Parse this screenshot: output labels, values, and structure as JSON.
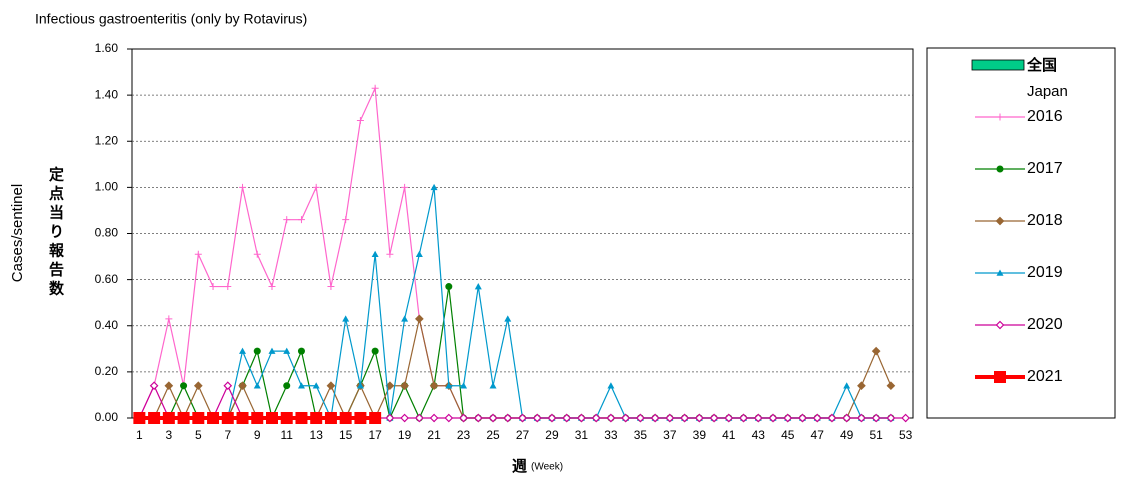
{
  "chart_data": {
    "type": "line",
    "title": "Infectious gastroenteritis (only by Rotavirus)",
    "y_label": "Cases/sentinel",
    "y_label_ja": "定点当り報告数",
    "x_label_ja": "週",
    "x_label": "(Week)",
    "x": [
      1,
      2,
      3,
      4,
      5,
      6,
      7,
      8,
      9,
      10,
      11,
      12,
      13,
      14,
      15,
      16,
      17,
      18,
      19,
      20,
      21,
      22,
      23,
      24,
      25,
      26,
      27,
      28,
      29,
      30,
      31,
      32,
      33,
      34,
      35,
      36,
      37,
      38,
      39,
      40,
      41,
      42,
      43,
      44,
      45,
      46,
      47,
      48,
      49,
      50,
      51,
      52,
      53
    ],
    "xlim": [
      0.5,
      53.5
    ],
    "xticks": [
      1,
      3,
      5,
      7,
      9,
      11,
      13,
      15,
      17,
      19,
      21,
      23,
      25,
      27,
      29,
      31,
      33,
      35,
      37,
      39,
      41,
      43,
      45,
      47,
      49,
      51,
      53
    ],
    "ylim": [
      0,
      1.6
    ],
    "yticks": [
      {
        "value": 0,
        "label": "0.00"
      },
      {
        "value": 0.2,
        "label": "0.20"
      },
      {
        "value": 0.4,
        "label": "0.40"
      },
      {
        "value": 0.6,
        "label": "0.60"
      },
      {
        "value": 0.8,
        "label": "0.80"
      },
      {
        "value": 1.0,
        "label": "1.00"
      },
      {
        "value": 1.2,
        "label": "1.20"
      },
      {
        "value": 1.4,
        "label": "1.40"
      },
      {
        "value": 1.6,
        "label": "1.60"
      }
    ],
    "grid": true,
    "legend_header": {
      "label": "全国",
      "sublabel": "Japan",
      "color": "#00cc88"
    },
    "series": [
      {
        "name": "2016",
        "color": "#ff66cc",
        "marker": "plus",
        "values": [
          0,
          0.14,
          0.43,
          0.14,
          0.71,
          0.57,
          0.57,
          1.0,
          0.71,
          0.57,
          0.86,
          0.86,
          1.0,
          0.57,
          0.86,
          1.29,
          1.43,
          0.71,
          1.0,
          0.43,
          0.14,
          0.14,
          0,
          0,
          0,
          0,
          0,
          0,
          0,
          0,
          0,
          0,
          0,
          0,
          0,
          0,
          0,
          0,
          0,
          0,
          0,
          0,
          0,
          0,
          0,
          0,
          0,
          0,
          0,
          0,
          0,
          0,
          null
        ]
      },
      {
        "name": "2017",
        "color": "#008000",
        "marker": "circle",
        "values": [
          0,
          0,
          0,
          0.14,
          0,
          0,
          0,
          0.14,
          0.29,
          0,
          0.14,
          0.29,
          0,
          0,
          0,
          0.14,
          0.29,
          0,
          0.14,
          0,
          0.14,
          0.57,
          0,
          0,
          0,
          0,
          0,
          0,
          0,
          0,
          0,
          0,
          0,
          0,
          0,
          0,
          0,
          0,
          0,
          0,
          0,
          0,
          0,
          0,
          0,
          0,
          0,
          0,
          0,
          0,
          0,
          0,
          null
        ]
      },
      {
        "name": "2018",
        "color": "#996633",
        "marker": "diamond",
        "values": [
          0,
          0,
          0.14,
          0,
          0.14,
          0,
          0,
          0.14,
          0,
          0,
          0,
          0,
          0,
          0.14,
          0,
          0.14,
          0,
          0.14,
          0.14,
          0.43,
          0.14,
          0.14,
          0,
          0,
          0,
          0,
          0,
          0,
          0,
          0,
          0,
          0,
          0,
          0,
          0,
          0,
          0,
          0,
          0,
          0,
          0,
          0,
          0,
          0,
          0,
          0,
          0,
          0,
          0,
          0.14,
          0.29,
          0.14,
          null
        ]
      },
      {
        "name": "2019",
        "color": "#0099cc",
        "marker": "triangle",
        "values": [
          0,
          0,
          0,
          0,
          0,
          0,
          0,
          0.29,
          0.14,
          0.29,
          0.29,
          0.14,
          0.14,
          0,
          0.43,
          0.14,
          0.71,
          0,
          0.43,
          0.71,
          1.0,
          0.14,
          0.14,
          0.57,
          0.14,
          0.43,
          0,
          0,
          0,
          0,
          0,
          0,
          0.14,
          0,
          0,
          0,
          0,
          0,
          0,
          0,
          0,
          0,
          0,
          0,
          0,
          0,
          0,
          0,
          0.14,
          0,
          0,
          0,
          null
        ]
      },
      {
        "name": "2020",
        "color": "#cc0099",
        "marker": "open-diamond",
        "values": [
          0,
          0.14,
          0,
          0,
          0,
          0,
          0.14,
          0,
          0,
          0,
          0,
          0,
          0,
          0,
          0,
          0,
          0,
          0,
          0,
          0,
          0,
          0,
          0,
          0,
          0,
          0,
          0,
          0,
          0,
          0,
          0,
          0,
          0,
          0,
          0,
          0,
          0,
          0,
          0,
          0,
          0,
          0,
          0,
          0,
          0,
          0,
          0,
          0,
          0,
          0,
          0,
          0,
          0
        ]
      },
      {
        "name": "2021",
        "color": "#ff0000",
        "marker": "square",
        "values": [
          0,
          0,
          0,
          0,
          0,
          0,
          0,
          0,
          0,
          0,
          0,
          0,
          0,
          0,
          0,
          0,
          0,
          null,
          null,
          null,
          null,
          null,
          null,
          null,
          null,
          null,
          null,
          null,
          null,
          null,
          null,
          null,
          null,
          null,
          null,
          null,
          null,
          null,
          null,
          null,
          null,
          null,
          null,
          null,
          null,
          null,
          null,
          null,
          null,
          null,
          null,
          null,
          null
        ]
      }
    ]
  }
}
